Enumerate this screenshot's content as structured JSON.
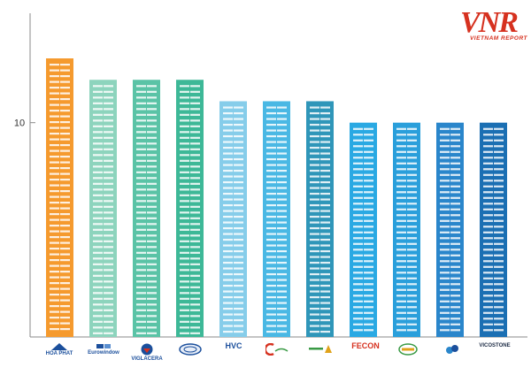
{
  "chart_data": {
    "type": "bar",
    "yticks": [
      10
    ],
    "ylim": [
      0,
      13
    ],
    "grid": false,
    "categories": [
      "HOA PHAT",
      "Eurowindow",
      "VIGLACERA",
      "",
      "HVC",
      "",
      "",
      "FECON",
      "",
      "",
      "VICOSTONE"
    ],
    "values": [
      13,
      12,
      12,
      12,
      11,
      11,
      11,
      10,
      10,
      10,
      10
    ],
    "colors": [
      "#f59a2e",
      "#8dd4bd",
      "#5ac3a6",
      "#3db897",
      "#86cdea",
      "#4ab8e4",
      "#2f96b9",
      "#2aa9e3",
      "#2a9fdb",
      "#2a86cb",
      "#1b6fb3"
    ]
  },
  "brand_logo": {
    "text": "VNR",
    "subtitle": "VIETNAM REPORT",
    "color": "#d6311f"
  }
}
